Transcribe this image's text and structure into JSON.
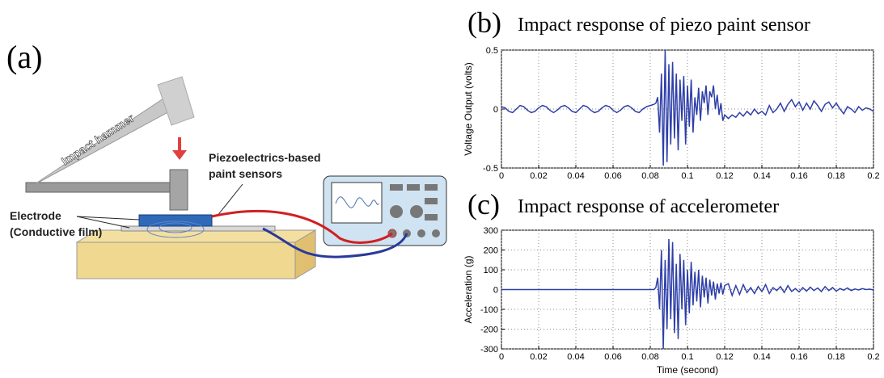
{
  "diagram": {
    "panel_label": "(a)",
    "hammer_label": "Impact hammer",
    "sensor_label": [
      "Piezoelectrics-based",
      "paint sensors"
    ],
    "electrode_label": [
      "Electrode",
      "(Conductive film)"
    ]
  },
  "chart_data": [
    {
      "type": "line",
      "panel_label": "(b)",
      "title": "Impact response of piezo paint sensor",
      "y_label": "Voltage Output (volts)",
      "color": "#2e3fa8",
      "grid": true,
      "xlim": [
        0,
        0.2
      ],
      "xticks": [
        0,
        0.02,
        0.04,
        0.06,
        0.08,
        0.1,
        0.12,
        0.14,
        0.16,
        0.18,
        0.2
      ],
      "ylim": [
        -0.5,
        0.5
      ],
      "yticks": [
        -0.5,
        0,
        0.5
      ],
      "x": [
        0,
        0.002,
        0.004,
        0.006,
        0.008,
        0.01,
        0.012,
        0.014,
        0.016,
        0.018,
        0.02,
        0.022,
        0.024,
        0.026,
        0.028,
        0.03,
        0.032,
        0.034,
        0.036,
        0.038,
        0.04,
        0.042,
        0.044,
        0.046,
        0.048,
        0.05,
        0.052,
        0.054,
        0.056,
        0.058,
        0.06,
        0.062,
        0.064,
        0.066,
        0.068,
        0.07,
        0.072,
        0.074,
        0.076,
        0.078,
        0.08,
        0.082,
        0.083,
        0.084,
        0.085,
        0.086,
        0.087,
        0.088,
        0.089,
        0.09,
        0.091,
        0.092,
        0.093,
        0.094,
        0.095,
        0.096,
        0.097,
        0.098,
        0.099,
        0.1,
        0.101,
        0.102,
        0.103,
        0.104,
        0.105,
        0.106,
        0.107,
        0.108,
        0.109,
        0.11,
        0.111,
        0.112,
        0.113,
        0.114,
        0.115,
        0.116,
        0.117,
        0.118,
        0.119,
        0.12,
        0.122,
        0.124,
        0.126,
        0.128,
        0.13,
        0.132,
        0.134,
        0.136,
        0.138,
        0.14,
        0.142,
        0.144,
        0.146,
        0.148,
        0.15,
        0.152,
        0.154,
        0.156,
        0.158,
        0.16,
        0.162,
        0.164,
        0.166,
        0.168,
        0.17,
        0.172,
        0.174,
        0.176,
        0.178,
        0.18,
        0.182,
        0.184,
        0.186,
        0.188,
        0.19,
        0.192,
        0.194,
        0.196,
        0.198,
        0.2
      ],
      "values": [
        0.02,
        0.01,
        -0.02,
        -0.03,
        0,
        0.03,
        0.02,
        -0.01,
        -0.03,
        -0.02,
        0.01,
        0.03,
        0.02,
        -0.01,
        -0.03,
        -0.01,
        0.02,
        0.03,
        0.01,
        -0.02,
        -0.03,
        0,
        0.03,
        0.02,
        -0.01,
        -0.03,
        -0.02,
        0.01,
        0.03,
        0.02,
        -0.01,
        -0.03,
        -0.01,
        0.02,
        0.03,
        0.01,
        -0.02,
        -0.03,
        0,
        0.02,
        0.03,
        0.04,
        0.05,
        0.1,
        -0.2,
        0.3,
        -0.48,
        0.5,
        -0.45,
        0.38,
        -0.3,
        0.4,
        -0.25,
        0.3,
        -0.35,
        0.25,
        -0.1,
        0.28,
        -0.3,
        0.2,
        -0.15,
        0.25,
        -0.2,
        0.1,
        -0.05,
        0.18,
        -0.1,
        0.15,
        0.05,
        0.2,
        -0.05,
        0.15,
        0.1,
        0.2,
        0,
        0.12,
        -0.05,
        0.05,
        -0.1,
        -0.05,
        -0.08,
        -0.05,
        -0.07,
        -0.03,
        -0.06,
        -0.02,
        -0.05,
        0,
        -0.04,
        -0.02,
        -0.05,
        0.03,
        -0.03,
        0,
        0.05,
        -0.02,
        0.04,
        0.08,
        0.02,
        0.06,
        -0.01,
        0.05,
        0,
        0.07,
        0.03,
        -0.02,
        0.04,
        0.06,
        0.01,
        0.05,
        0,
        -0.04,
        0.02,
        0,
        -0.03,
        0.02,
        -0.01,
        0.01,
        0,
        -0.02
      ]
    },
    {
      "type": "line",
      "panel_label": "(c)",
      "title": "Impact response of accelerometer",
      "y_label": "Acceleration (g)",
      "x_label": "Time (second)",
      "color": "#2e3fa8",
      "grid": true,
      "xlim": [
        0,
        0.2
      ],
      "xticks": [
        0,
        0.02,
        0.04,
        0.06,
        0.08,
        0.1,
        0.12,
        0.14,
        0.16,
        0.18,
        0.2
      ],
      "ylim": [
        -300,
        300
      ],
      "yticks": [
        -300,
        -200,
        -100,
        0,
        100,
        200,
        300
      ],
      "x": [
        0,
        0.002,
        0.004,
        0.006,
        0.008,
        0.01,
        0.012,
        0.014,
        0.016,
        0.018,
        0.02,
        0.022,
        0.024,
        0.026,
        0.028,
        0.03,
        0.032,
        0.034,
        0.036,
        0.038,
        0.04,
        0.042,
        0.044,
        0.046,
        0.048,
        0.05,
        0.052,
        0.054,
        0.056,
        0.058,
        0.06,
        0.062,
        0.064,
        0.066,
        0.068,
        0.07,
        0.072,
        0.074,
        0.076,
        0.078,
        0.08,
        0.082,
        0.083,
        0.084,
        0.085,
        0.086,
        0.087,
        0.088,
        0.089,
        0.09,
        0.091,
        0.092,
        0.093,
        0.094,
        0.095,
        0.096,
        0.097,
        0.098,
        0.099,
        0.1,
        0.101,
        0.102,
        0.103,
        0.104,
        0.105,
        0.106,
        0.107,
        0.108,
        0.109,
        0.11,
        0.111,
        0.112,
        0.113,
        0.114,
        0.115,
        0.116,
        0.117,
        0.118,
        0.119,
        0.12,
        0.122,
        0.124,
        0.126,
        0.128,
        0.13,
        0.132,
        0.134,
        0.136,
        0.138,
        0.14,
        0.142,
        0.144,
        0.146,
        0.148,
        0.15,
        0.152,
        0.154,
        0.156,
        0.158,
        0.16,
        0.162,
        0.164,
        0.166,
        0.168,
        0.17,
        0.172,
        0.174,
        0.176,
        0.178,
        0.18,
        0.182,
        0.184,
        0.186,
        0.188,
        0.19,
        0.192,
        0.194,
        0.196,
        0.198,
        0.2
      ],
      "values": [
        0,
        0,
        0,
        0,
        0,
        0,
        0,
        0,
        0,
        0,
        0,
        0,
        0,
        0,
        0,
        0,
        0,
        0,
        0,
        0,
        0,
        0,
        0,
        0,
        0,
        0,
        0,
        0,
        0,
        0,
        0,
        0,
        0,
        0,
        0,
        0,
        0,
        0,
        0,
        0,
        0,
        0,
        10,
        60,
        -100,
        200,
        -300,
        150,
        -200,
        255,
        -150,
        240,
        -220,
        130,
        -250,
        180,
        -100,
        150,
        -180,
        100,
        -120,
        140,
        -80,
        90,
        -60,
        100,
        -90,
        70,
        -40,
        60,
        -70,
        50,
        -30,
        40,
        -50,
        30,
        -20,
        35,
        -25,
        20,
        30,
        -30,
        20,
        -25,
        25,
        -15,
        10,
        -20,
        15,
        -10,
        25,
        -20,
        10,
        -5,
        15,
        -15,
        20,
        -10,
        5,
        -12,
        10,
        -8,
        12,
        -5,
        8,
        -10,
        15,
        -5,
        10,
        -8,
        5,
        -3,
        8,
        -5,
        3,
        -2,
        5,
        0,
        2,
        -2
      ]
    }
  ]
}
